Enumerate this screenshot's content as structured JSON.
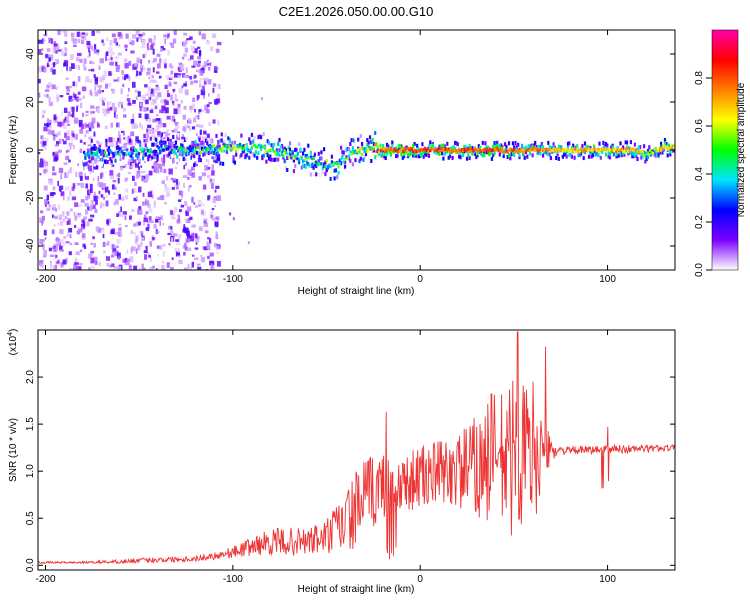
{
  "title": "C2E1.2026.050.00.00.G10",
  "chart_data": [
    {
      "type": "heatmap",
      "xlabel": "Height of straight line (km)",
      "ylabel": "Frequency (Hz)",
      "xlim": [
        -204,
        136
      ],
      "ylim": [
        -50,
        50
      ],
      "xticks": [
        -200,
        -100,
        0,
        100
      ],
      "xtick_labels": [
        "-200",
        "-100",
        "0",
        "100"
      ],
      "yticks": [
        -40,
        -20,
        0,
        20,
        40
      ],
      "ytick_labels": [
        "-40",
        "-20",
        "0",
        "20",
        "40"
      ],
      "colorbar": {
        "label": "Normalized spectral amplitude",
        "range": [
          0,
          1
        ],
        "ticks": [
          0.0,
          0.2,
          0.4,
          0.6,
          0.8
        ],
        "tick_labels": [
          "0.0",
          "0.2",
          "0.4",
          "0.6",
          "0.8"
        ],
        "colormap": [
          "#ffffff",
          "#7b00ff",
          "#0000ff",
          "#00e5ff",
          "#00ff00",
          "#ffff00",
          "#ff7f00",
          "#ff0000",
          "#ff00aa"
        ]
      },
      "ridge": {
        "x": [
          -178,
          -160,
          -140,
          -120,
          -100,
          -90,
          -80,
          -70,
          -60,
          -50,
          -45,
          -40,
          -35,
          -30,
          -25,
          -22,
          0,
          20,
          40,
          60,
          80,
          100,
          115,
          120,
          125,
          130,
          136
        ],
        "y": [
          -2,
          -1,
          0,
          0,
          1,
          1,
          0,
          -2,
          -4,
          -6,
          -7,
          -3,
          -1,
          0,
          1,
          0,
          0,
          0,
          0,
          0,
          0,
          0,
          0,
          -2,
          0,
          1,
          1
        ],
        "amplitude": [
          0.35,
          0.3,
          0.35,
          0.4,
          0.45,
          0.5,
          0.45,
          0.45,
          0.45,
          0.45,
          0.4,
          0.45,
          0.5,
          0.5,
          0.6,
          0.75,
          0.8,
          0.8,
          0.8,
          0.75,
          0.7,
          0.7,
          0.7,
          0.5,
          0.6,
          0.7,
          0.7
        ]
      },
      "noise_region_x": [
        -204,
        -108
      ]
    },
    {
      "type": "line",
      "xlabel": "Height of straight line (km)",
      "ylabel": "SNR (10 * v/v)",
      "y_multiplier": "(x10",
      "y_exponent": "4",
      "xlim": [
        -204,
        136
      ],
      "ylim": [
        -0.05,
        2.5
      ],
      "xticks": [
        -200,
        -100,
        0,
        100
      ],
      "xtick_labels": [
        "-200",
        "-100",
        "0",
        "100"
      ],
      "yticks": [
        0.0,
        0.5,
        1.0,
        1.5,
        2.0
      ],
      "ytick_labels": [
        "0.0",
        "0.5",
        "1.0",
        "1.5",
        "2.0"
      ],
      "line_color": "#ee3333",
      "series": [
        {
          "name": "SNR",
          "x": [
            -204,
            -180,
            -160,
            -140,
            -120,
            -110,
            -100,
            -90,
            -80,
            -70,
            -60,
            -50,
            -40,
            -30,
            -20,
            -10,
            0,
            10,
            20,
            30,
            40,
            50,
            60,
            70,
            75,
            80,
            100,
            120,
            136
          ],
          "y": [
            0.03,
            0.03,
            0.04,
            0.06,
            0.07,
            0.1,
            0.14,
            0.2,
            0.25,
            0.25,
            0.25,
            0.3,
            0.45,
            0.7,
            0.85,
            0.88,
            0.93,
            0.98,
            1.0,
            1.05,
            1.1,
            1.15,
            1.2,
            1.22,
            1.22,
            1.22,
            1.23,
            1.24,
            1.25
          ],
          "spread": [
            0.01,
            0.01,
            0.02,
            0.03,
            0.03,
            0.04,
            0.06,
            0.1,
            0.14,
            0.15,
            0.15,
            0.2,
            0.35,
            0.45,
            0.35,
            0.3,
            0.35,
            0.35,
            0.4,
            0.55,
            0.75,
            0.85,
            0.8,
            0.1,
            0.05,
            0.04,
            0.05,
            0.04,
            0.03
          ]
        }
      ],
      "peaks": [
        {
          "x": -18,
          "y": 1.63
        },
        {
          "x": 38,
          "y": 1.82
        },
        {
          "x": 52,
          "y": 2.48
        },
        {
          "x": 67,
          "y": 2.32
        },
        {
          "x": 100,
          "y": 1.47
        }
      ]
    }
  ]
}
